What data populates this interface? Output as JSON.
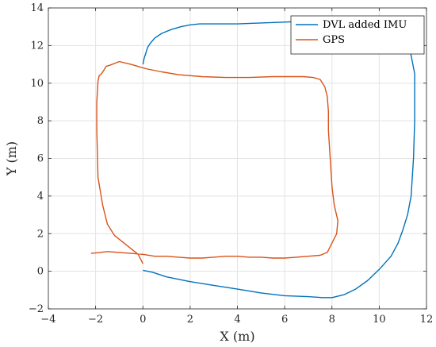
{
  "chart_data": {
    "type": "line",
    "xlabel": "X (m)",
    "ylabel": "Y (m)",
    "xlim": [
      -4,
      12
    ],
    "ylim": [
      -2,
      14
    ],
    "xticks": [
      -4,
      -2,
      0,
      2,
      4,
      6,
      8,
      10,
      12
    ],
    "yticks": [
      -2,
      0,
      2,
      4,
      6,
      8,
      10,
      12,
      14
    ],
    "xtick_labels": [
      "−4",
      "−2",
      "0",
      "2",
      "4",
      "6",
      "8",
      "10",
      "12"
    ],
    "ytick_labels": [
      "−2",
      "0",
      "2",
      "4",
      "6",
      "8",
      "10",
      "12",
      "14"
    ],
    "grid": true,
    "legend_position": "top-right",
    "series": [
      {
        "name": "DVL added IMU",
        "color": "#0072BD",
        "x": [
          0.0,
          0.05,
          0.1,
          0.15,
          0.2,
          0.3,
          0.5,
          0.8,
          1.2,
          1.6,
          2.0,
          2.4,
          3.0,
          4.0,
          5.0,
          6.0,
          7.0,
          8.0,
          9.0,
          10.0,
          10.5,
          10.9,
          11.3,
          11.5,
          11.5,
          11.45,
          11.35,
          11.2,
          11.0,
          10.8,
          10.5,
          10.0,
          9.5,
          9.0,
          8.5,
          8.0,
          7.6,
          7.0,
          6.0,
          5.0,
          4.0,
          3.0,
          2.0,
          1.0,
          0.4,
          0.0
        ],
        "y": [
          11.0,
          11.3,
          11.5,
          11.7,
          11.9,
          12.1,
          12.4,
          12.65,
          12.85,
          13.0,
          13.1,
          13.15,
          13.15,
          13.15,
          13.2,
          13.25,
          13.3,
          13.3,
          13.28,
          13.2,
          13.0,
          12.5,
          11.8,
          10.5,
          8.0,
          6.0,
          4.0,
          3.0,
          2.2,
          1.5,
          0.8,
          0.1,
          -0.5,
          -0.95,
          -1.25,
          -1.4,
          -1.4,
          -1.35,
          -1.3,
          -1.15,
          -0.95,
          -0.75,
          -0.55,
          -0.3,
          -0.05,
          0.05
        ]
      },
      {
        "name": "GPS",
        "color": "#D95319",
        "x": [
          -2.2,
          -1.8,
          -1.5,
          -1.0,
          -0.5,
          0.0,
          0.5,
          1.0,
          1.5,
          2.0,
          2.5,
          3.0,
          3.5,
          4.0,
          4.5,
          5.0,
          5.5,
          6.0,
          6.5,
          7.0,
          7.5,
          7.8,
          8.0,
          8.2,
          8.25,
          8.1,
          8.0,
          7.95,
          7.9,
          7.85,
          7.85,
          7.8,
          7.7,
          7.5,
          7.2,
          6.8,
          6.3,
          5.5,
          4.5,
          3.5,
          2.5,
          1.5,
          0.8,
          0.2,
          -0.1,
          -0.5,
          -1.0,
          -1.4,
          -1.55,
          -1.65,
          -1.75,
          -1.85,
          -1.9,
          -1.95,
          -1.95,
          -1.9,
          -1.7,
          -1.5,
          -1.2,
          -0.8,
          -0.5,
          -0.2,
          0.0
        ],
        "y": [
          0.95,
          1.0,
          1.05,
          1.0,
          0.95,
          0.9,
          0.8,
          0.8,
          0.75,
          0.7,
          0.7,
          0.75,
          0.8,
          0.8,
          0.75,
          0.75,
          0.7,
          0.7,
          0.75,
          0.8,
          0.85,
          1.0,
          1.5,
          2.0,
          2.7,
          3.5,
          4.5,
          5.5,
          6.5,
          7.5,
          8.5,
          9.3,
          9.8,
          10.2,
          10.3,
          10.35,
          10.35,
          10.35,
          10.3,
          10.3,
          10.35,
          10.45,
          10.6,
          10.75,
          10.85,
          11.0,
          11.15,
          10.95,
          10.9,
          10.7,
          10.5,
          10.4,
          10.1,
          9.0,
          7.5,
          5.0,
          3.5,
          2.5,
          1.9,
          1.5,
          1.2,
          0.9,
          0.4
        ]
      }
    ]
  }
}
